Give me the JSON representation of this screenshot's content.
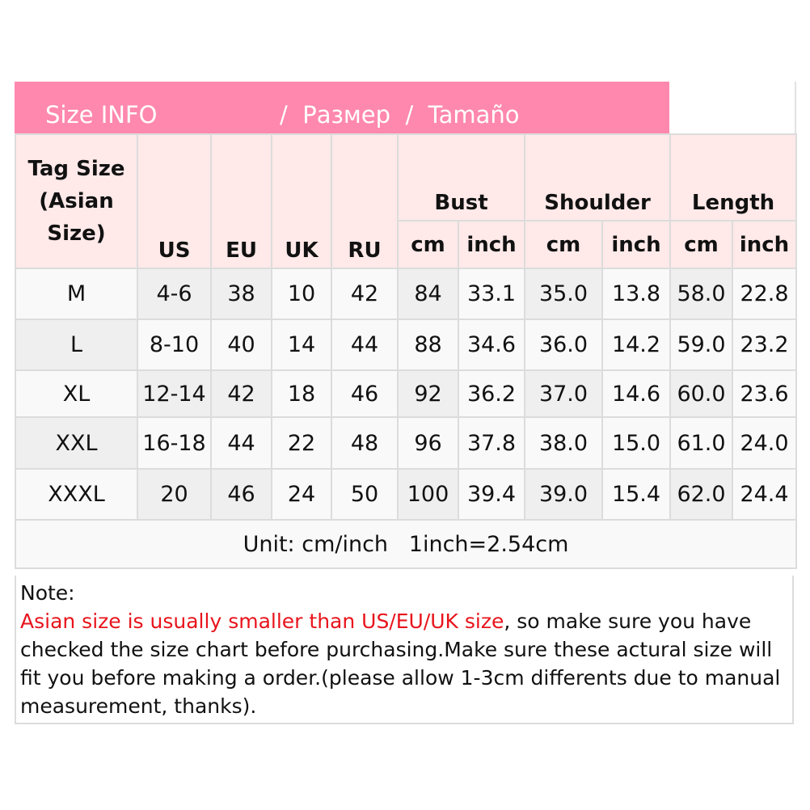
{
  "banner": {
    "part1": "Size INFO",
    "part2": "/  Размер  /  Tamaño"
  },
  "headers": {
    "tag_size": "Tag Size (Asian Size)",
    "us": "US",
    "eu": "EU",
    "uk": "UK",
    "ru": "RU",
    "bust": "Bust",
    "shoulder": "Shoulder",
    "length": "Length",
    "cm": "cm",
    "inch": "inch"
  },
  "rows": [
    [
      "M",
      "4-6",
      "38",
      "10",
      "42",
      "84",
      "33.1",
      "35.0",
      "13.8",
      "58.0",
      "22.8"
    ],
    [
      "L",
      "8-10",
      "40",
      "14",
      "44",
      "88",
      "34.6",
      "36.0",
      "14.2",
      "59.0",
      "23.2"
    ],
    [
      "XL",
      "12-14",
      "42",
      "18",
      "46",
      "92",
      "36.2",
      "37.0",
      "14.6",
      "60.0",
      "23.6"
    ],
    [
      "XXL",
      "16-18",
      "44",
      "22",
      "48",
      "96",
      "37.8",
      "38.0",
      "15.0",
      "61.0",
      "24.0"
    ],
    [
      "XXXL",
      "20",
      "46",
      "24",
      "50",
      "100",
      "39.4",
      "39.0",
      "15.4",
      "62.0",
      "24.4"
    ]
  ],
  "unit": "Unit: cm/inch   1inch=2.54cm",
  "note": {
    "label": "Note:",
    "highlight": "Asian size is usually smaller than US/EU/UK size",
    "text": ", so make sure you have checked the size chart before purchasing.Make sure these actural size will fit you before making a order.(please allow 1-3cm differents due to manual measurement, thanks)."
  },
  "colors": {
    "banner": "#ff88ae",
    "header_bg": "#ffe9e9",
    "highlight": "#e8141c"
  }
}
